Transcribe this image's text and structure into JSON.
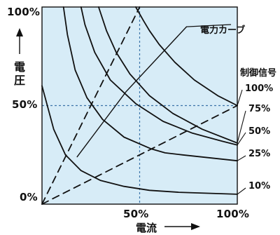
{
  "colors": {
    "plot_background": "#d7ecf7",
    "frame": "#111111",
    "curve": "#111111",
    "guide": "#3a73a9"
  },
  "axes": {
    "y_ticks": [
      "100%",
      "50%",
      "0%"
    ],
    "x_ticks": [
      "50%",
      "100%"
    ],
    "y_label_chars": [
      "電",
      "圧"
    ],
    "x_label": "電流",
    "arrow_icons": [
      "arrow-up-icon",
      "arrow-right-icon"
    ]
  },
  "legend": {
    "power_curve_label": "電力カーブ",
    "control_signal_title": "制御信号",
    "control_levels": [
      "100%",
      "75%",
      "50%",
      "25%",
      "10%"
    ]
  },
  "chart_data": {
    "type": "line",
    "xlabel": "電流",
    "ylabel": "電圧",
    "xlim": [
      0,
      100
    ],
    "ylim": [
      0,
      100
    ],
    "grid": "dashed guide lines at x=50% and y=50%",
    "series": [
      {
        "name": "100%",
        "x": [
          48,
          52,
          55,
          60,
          68,
          78,
          90,
          100
        ],
        "y": [
          100,
          93,
          88,
          81,
          72,
          63,
          55,
          50
        ]
      },
      {
        "name": "75%",
        "x": [
          29,
          33,
          38,
          45,
          55,
          67,
          82,
          100
        ],
        "y": [
          100,
          88,
          77,
          66,
          55,
          46,
          38,
          31
        ]
      },
      {
        "name": "50%",
        "x": [
          20,
          22,
          27,
          35,
          48,
          62,
          77,
          92,
          100
        ],
        "y": [
          100,
          91,
          77,
          63,
          51,
          42,
          36,
          32,
          30
        ]
      },
      {
        "name": "25%",
        "x": [
          11,
          13,
          17,
          23,
          31,
          42,
          56,
          63,
          72,
          100
        ],
        "y": [
          100,
          86,
          68,
          54,
          43,
          34,
          28,
          26,
          25,
          22
        ]
      },
      {
        "name": "10%",
        "x": [
          0,
          6,
          12,
          20,
          30,
          42,
          55,
          70,
          85,
          100
        ],
        "y": [
          60,
          38,
          25,
          17,
          12,
          9,
          7,
          6,
          5.5,
          5
        ]
      },
      {
        "name": "電力カーブ",
        "x": [
          18,
          43,
          74
        ],
        "y": [
          24,
          57,
          90
        ]
      },
      {
        "name": "dashed-steep",
        "x": [
          0,
          50
        ],
        "y": [
          0,
          100
        ]
      },
      {
        "name": "dashed-shallow",
        "x": [
          0,
          100
        ],
        "y": [
          0,
          50
        ]
      }
    ]
  }
}
